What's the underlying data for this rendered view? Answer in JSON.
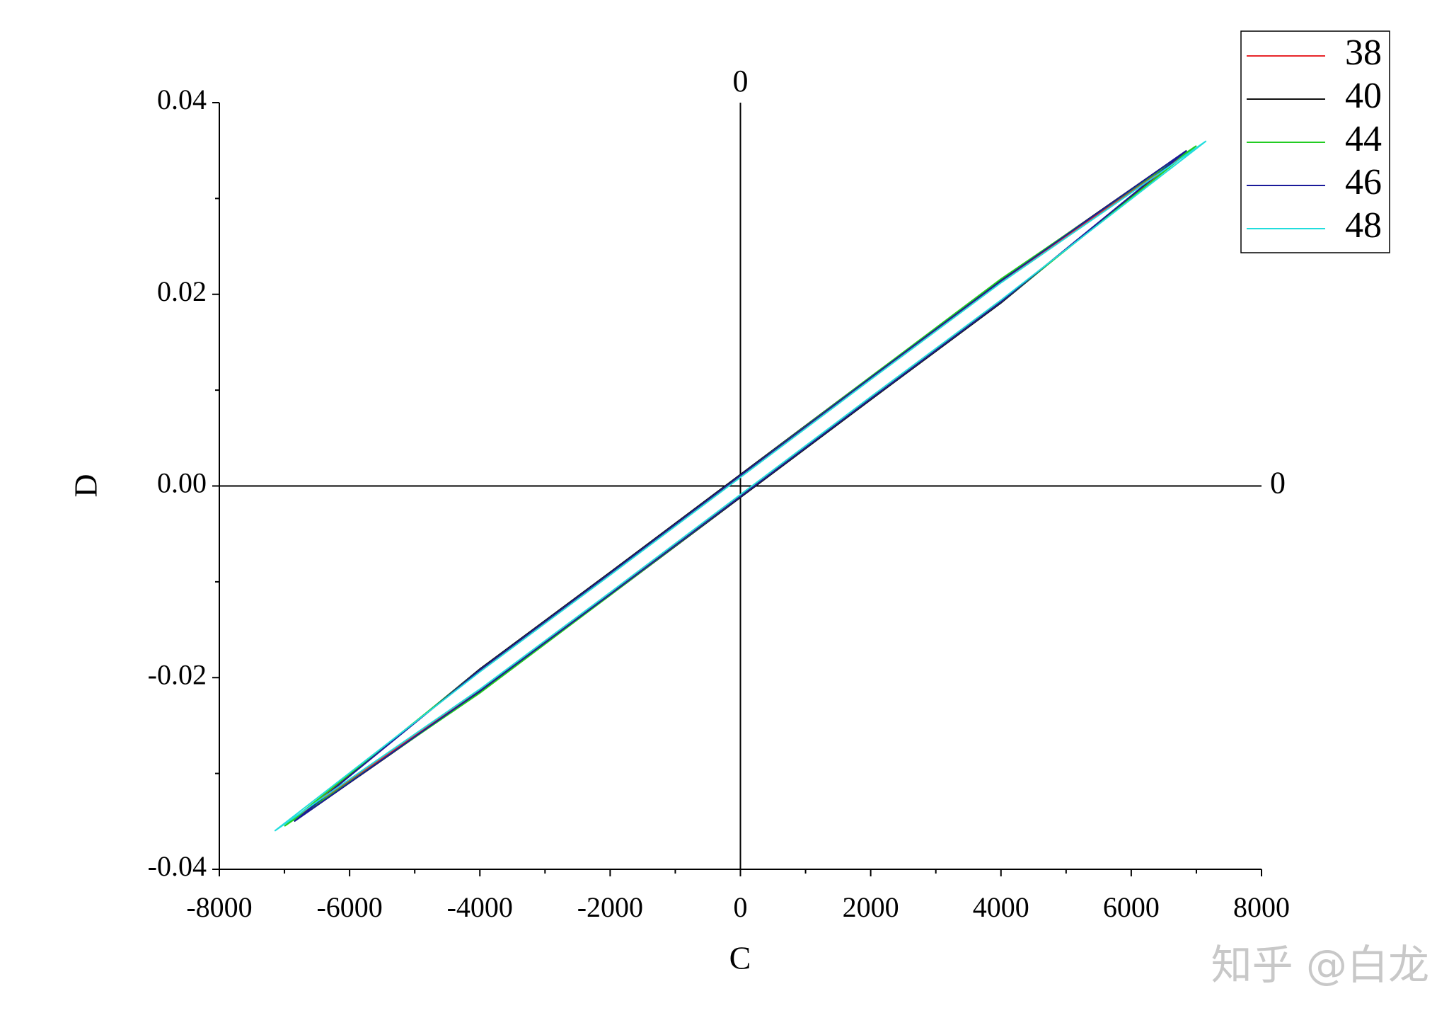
{
  "chart_data": {
    "type": "line",
    "xlabel": "C",
    "ylabel": "D",
    "xlim": [
      -8000,
      8000
    ],
    "xticks": [
      -8000,
      -6000,
      -4000,
      -2000,
      0,
      2000,
      4000,
      6000,
      8000
    ],
    "ylim": [
      -0.04,
      0.04
    ],
    "yticks": [
      -0.04,
      -0.02,
      {
        "value": 0,
        "label": "0.00"
      },
      0.02,
      0.04
    ],
    "annotations": [
      "0",
      "0"
    ],
    "watermark": "知乎 @白龙",
    "legend": "top-right",
    "series": [
      {
        "name": "38",
        "color": "#e8262a",
        "x": [
          -6900,
          -4000,
          -2000,
          0,
          2000,
          4000,
          6900,
          4000,
          2000,
          0,
          -2000,
          -4000,
          -6900
        ],
        "values": [
          -0.035,
          -0.0213,
          -0.0112,
          -0.001,
          0.0092,
          0.0193,
          0.035,
          0.0213,
          0.0112,
          0.001,
          -0.0092,
          -0.0193,
          -0.035
        ]
      },
      {
        "name": "40",
        "color": "#111111",
        "x": [
          -6850,
          -4000,
          -2000,
          0,
          2000,
          4000,
          6850,
          4000,
          2000,
          0,
          -2000,
          -4000,
          -6850
        ],
        "values": [
          -0.035,
          -0.0215,
          -0.0114,
          -0.0012,
          0.009,
          0.0191,
          0.035,
          0.0215,
          0.0114,
          0.0012,
          -0.009,
          -0.0191,
          -0.035
        ]
      },
      {
        "name": "44",
        "color": "#22cc22",
        "x": [
          -7000,
          -4000,
          -2000,
          0,
          2000,
          4000,
          7000,
          4000,
          2000,
          0,
          -2000,
          -4000,
          -7000
        ],
        "values": [
          -0.0355,
          -0.0216,
          -0.0114,
          -0.0011,
          0.0091,
          0.0192,
          0.0355,
          0.0216,
          0.0114,
          0.0011,
          -0.0091,
          -0.0192,
          -0.0355
        ]
      },
      {
        "name": "46",
        "color": "#1a1a9a",
        "x": [
          -6850,
          -4000,
          -2000,
          0,
          2000,
          4000,
          6850,
          4000,
          2000,
          0,
          -2000,
          -4000,
          -6850
        ],
        "values": [
          -0.035,
          -0.0214,
          -0.0113,
          -0.0011,
          0.0091,
          0.0192,
          0.035,
          0.0214,
          0.0113,
          0.0011,
          -0.0091,
          -0.0192,
          -0.035
        ]
      },
      {
        "name": "48",
        "color": "#22dddd",
        "x": [
          -7150,
          -4000,
          -2000,
          0,
          2000,
          4000,
          7150,
          4000,
          2000,
          0,
          -2000,
          -4000,
          -7150
        ],
        "values": [
          -0.036,
          -0.0212,
          -0.0111,
          -0.0009,
          0.0093,
          0.0194,
          0.036,
          0.0212,
          0.0111,
          0.0009,
          -0.0093,
          -0.0194,
          -0.036
        ]
      }
    ]
  }
}
